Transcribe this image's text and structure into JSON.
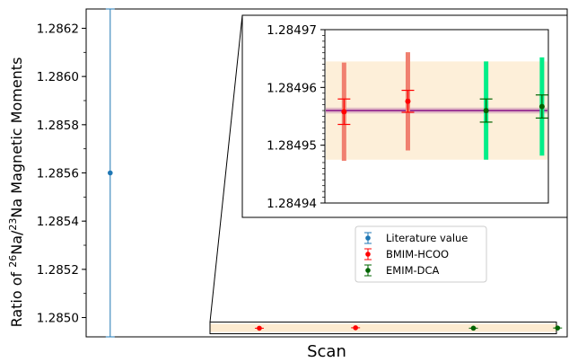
{
  "chart_data": {
    "type": "scatter",
    "xlabel": "Scan",
    "ylabel": {
      "prefix": "Ratio of ",
      "sup1": "26",
      "mid": "Na/",
      "sup2": "23",
      "suffix": "Na Magnetic Moments"
    },
    "ylim": [
      1.28492,
      1.28628
    ],
    "yticks": [
      "1.2850",
      "1.2852",
      "1.2854",
      "1.2856",
      "1.2858",
      "1.2860",
      "1.2862"
    ],
    "xlim": [
      0,
      10
    ],
    "series": [
      {
        "name": "Literature value",
        "color": "#1f77b4",
        "points": [
          {
            "x": 0.5,
            "y": 1.2856,
            "err": 0.00068
          }
        ]
      },
      {
        "name": "BMIM-HCOO",
        "color": "#ff0000",
        "points": [
          {
            "x": 3.6,
            "y": 1.2849558,
            "err": 2.2e-06
          },
          {
            "x": 5.6,
            "y": 1.2849576,
            "err": 1.9e-06
          }
        ]
      },
      {
        "name": "EMIM-DCA",
        "color": "#006400",
        "points": [
          {
            "x": 8.05,
            "y": 1.284956,
            "err": 2e-06
          },
          {
            "x": 9.8,
            "y": 1.2849567,
            "err": 2e-06
          }
        ]
      }
    ],
    "zoom_region": {
      "x": [
        3.0,
        10.0
      ],
      "y": [
        1.284944,
        1.28497
      ]
    },
    "inset": {
      "ylim": [
        1.28494,
        1.28497
      ],
      "yticks": [
        "1.28494",
        "1.28495",
        "1.28496",
        "1.28497"
      ],
      "xlim": [
        3.0,
        10.0
      ],
      "mean": 1.284956,
      "mean_err": 5e-07,
      "mean_color": "#800080",
      "sys_band": [
        1.2849475,
        1.2849645
      ],
      "sys_band_color": "#fdebd0",
      "points": [
        {
          "x": 3.6,
          "y": 1.2849558,
          "stat": 2.2e-06,
          "sys": 8.5e-06,
          "color": "#ff0000",
          "sys_color": "#f08070"
        },
        {
          "x": 5.6,
          "y": 1.2849576,
          "stat": 1.9e-06,
          "sys": 8.5e-06,
          "color": "#ff0000",
          "sys_color": "#f08070"
        },
        {
          "x": 8.05,
          "y": 1.284956,
          "stat": 2e-06,
          "sys": 8.5e-06,
          "color": "#006400",
          "sys_color": "#00ee88"
        },
        {
          "x": 9.8,
          "y": 1.2849567,
          "stat": 2e-06,
          "sys": 8.5e-06,
          "color": "#006400",
          "sys_color": "#00ee88"
        }
      ]
    },
    "legend_position": "center-right"
  }
}
